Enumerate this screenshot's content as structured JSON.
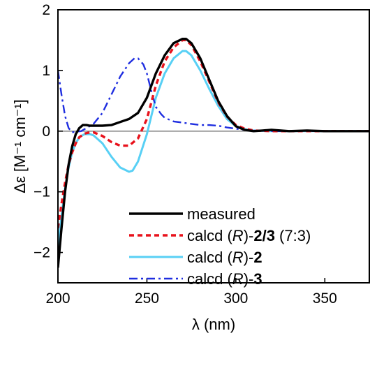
{
  "chart_data": {
    "type": "line",
    "xlabel": "λ (nm)",
    "ylabel": "Δε [M⁻¹ cm⁻¹]",
    "xlim": [
      200,
      375
    ],
    "ylim": [
      -2.5,
      2
    ],
    "xticks": [
      200,
      250,
      300,
      350
    ],
    "yticks": [
      -2,
      -1,
      0,
      1,
      2
    ],
    "zero_line": true,
    "grid": false,
    "legend_position": "bottom-right",
    "series": [
      {
        "name": "measured",
        "legend_parts": [
          {
            "text": "measured"
          }
        ],
        "color": "#000000",
        "style": "solid",
        "x": [
          200,
          202,
          204,
          206,
          208,
          210,
          212,
          214,
          216,
          218,
          220,
          225,
          230,
          235,
          240,
          245,
          250,
          255,
          260,
          265,
          270,
          272,
          275,
          280,
          285,
          290,
          295,
          300,
          305,
          310,
          315,
          320,
          330,
          340,
          350,
          360,
          375
        ],
        "y": [
          -2.25,
          -1.6,
          -1.0,
          -0.55,
          -0.25,
          -0.05,
          0.05,
          0.1,
          0.1,
          0.09,
          0.09,
          0.09,
          0.1,
          0.15,
          0.2,
          0.3,
          0.55,
          0.95,
          1.25,
          1.45,
          1.52,
          1.52,
          1.45,
          1.2,
          0.85,
          0.5,
          0.25,
          0.08,
          0.02,
          0.0,
          0.01,
          0.02,
          0.0,
          0.01,
          0.0,
          0.0,
          0.0
        ]
      },
      {
        "name": "calcd (R)-2/3 (7:3)",
        "legend_parts": [
          {
            "text": "calcd ("
          },
          {
            "text": "R",
            "style": "italic"
          },
          {
            "text": ")-"
          },
          {
            "text": "2/3",
            "weight": "bold"
          },
          {
            "text": " (7:3)"
          }
        ],
        "color": "#e8121c",
        "style": "dashed",
        "x": [
          200,
          202,
          204,
          206,
          208,
          210,
          212,
          215,
          218,
          220,
          225,
          230,
          235,
          240,
          245,
          250,
          255,
          260,
          265,
          270,
          272,
          275,
          280,
          285,
          290,
          295,
          300,
          305,
          310,
          320,
          330,
          340,
          350,
          375
        ],
        "y": [
          -1.6,
          -1.2,
          -0.85,
          -0.55,
          -0.35,
          -0.2,
          -0.1,
          -0.04,
          -0.02,
          -0.02,
          -0.08,
          -0.18,
          -0.24,
          -0.24,
          -0.12,
          0.2,
          0.75,
          1.15,
          1.38,
          1.5,
          1.5,
          1.42,
          1.15,
          0.82,
          0.48,
          0.24,
          0.1,
          0.04,
          0.01,
          0.0,
          0.0,
          0.0,
          0.0,
          0.0
        ]
      },
      {
        "name": "calcd (R)-2",
        "legend_parts": [
          {
            "text": "calcd ("
          },
          {
            "text": "R",
            "style": "italic"
          },
          {
            "text": ")-"
          },
          {
            "text": "2",
            "weight": "bold"
          }
        ],
        "color": "#58d0f5",
        "style": "solid",
        "x": [
          200,
          202,
          204,
          206,
          208,
          210,
          212,
          215,
          218,
          220,
          225,
          230,
          235,
          240,
          242,
          245,
          250,
          255,
          260,
          265,
          270,
          272,
          275,
          280,
          285,
          290,
          295,
          300,
          305,
          310,
          320,
          330,
          340,
          350,
          375
        ],
        "y": [
          -1.9,
          -1.4,
          -0.95,
          -0.6,
          -0.35,
          -0.2,
          -0.1,
          -0.05,
          -0.05,
          -0.07,
          -0.2,
          -0.42,
          -0.6,
          -0.67,
          -0.65,
          -0.5,
          -0.05,
          0.55,
          0.95,
          1.2,
          1.32,
          1.32,
          1.25,
          1.0,
          0.7,
          0.42,
          0.2,
          0.08,
          0.03,
          0.01,
          0.0,
          0.0,
          0.0,
          0.0,
          0.0
        ]
      },
      {
        "name": "calcd (R)-3",
        "legend_parts": [
          {
            "text": "calcd ("
          },
          {
            "text": "R",
            "style": "italic"
          },
          {
            "text": ")-"
          },
          {
            "text": "3",
            "weight": "bold"
          }
        ],
        "color": "#1f2ee0",
        "style": "dashdot",
        "x": [
          200,
          202,
          204,
          206,
          208,
          210,
          213,
          216,
          220,
          225,
          230,
          235,
          240,
          243,
          245,
          248,
          250,
          253,
          255,
          258,
          260,
          265,
          270,
          275,
          280,
          285,
          290,
          295,
          300,
          305,
          310,
          320,
          330,
          350,
          375
        ],
        "y": [
          1.0,
          0.6,
          0.25,
          0.05,
          -0.02,
          -0.01,
          0.0,
          0.05,
          0.12,
          0.3,
          0.6,
          0.9,
          1.12,
          1.2,
          1.2,
          1.1,
          0.95,
          0.6,
          0.4,
          0.28,
          0.22,
          0.16,
          0.14,
          0.12,
          0.1,
          0.1,
          0.09,
          0.06,
          0.04,
          0.02,
          0.01,
          0.0,
          0.0,
          0.0,
          0.0
        ]
      }
    ]
  }
}
